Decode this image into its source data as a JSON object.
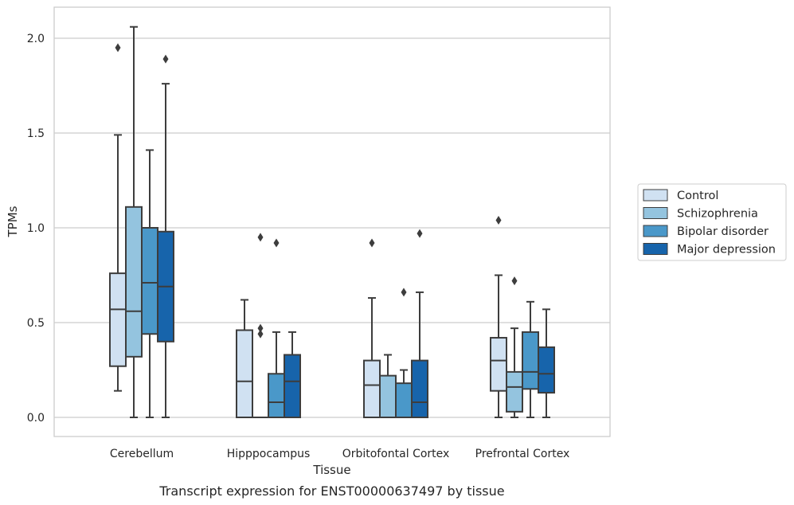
{
  "chart_data": {
    "type": "box",
    "title": "",
    "caption": "Transcript expression for ENST00000637497 by tissue",
    "xlabel": "Tissue",
    "ylabel": "TPMs",
    "ylim": [
      -0.1,
      2.17
    ],
    "yticks": [
      0.0,
      0.5,
      1.0,
      1.5,
      2.0
    ],
    "ytick_labels": [
      "0.0",
      "0.5",
      "1.0",
      "1.5",
      "2.0"
    ],
    "grid": "horizontal",
    "legend_position": "right",
    "categories": [
      "Cerebellum",
      "Hipppocampus",
      "Orbitofontal Cortex",
      "Prefrontal Cortex"
    ],
    "series": [
      {
        "name": "Control",
        "color": "#d0e1f2",
        "boxes": [
          {
            "whislo": 0.14,
            "q1": 0.27,
            "med": 0.57,
            "q3": 0.76,
            "whishi": 1.49,
            "fliers": [
              1.95
            ]
          },
          {
            "whislo": 0.0,
            "q1": 0.0,
            "med": 0.19,
            "q3": 0.46,
            "whishi": 0.62,
            "fliers": []
          },
          {
            "whislo": 0.0,
            "q1": 0.0,
            "med": 0.17,
            "q3": 0.3,
            "whishi": 0.63,
            "fliers": [
              0.92
            ]
          },
          {
            "whislo": 0.0,
            "q1": 0.14,
            "med": 0.3,
            "q3": 0.42,
            "whishi": 0.75,
            "fliers": [
              1.04
            ]
          }
        ]
      },
      {
        "name": "Schizophrenia",
        "color": "#94c4df",
        "boxes": [
          {
            "whislo": 0.0,
            "q1": 0.32,
            "med": 0.56,
            "q3": 1.11,
            "whishi": 2.06,
            "fliers": []
          },
          {
            "whislo": 0.0,
            "q1": 0.0,
            "med": 0.0,
            "q3": 0.0,
            "whishi": 0.0,
            "fliers": [
              0.95,
              0.47,
              0.44
            ]
          },
          {
            "whislo": 0.0,
            "q1": 0.0,
            "med": 0.0,
            "q3": 0.22,
            "whishi": 0.33,
            "fliers": []
          },
          {
            "whislo": 0.0,
            "q1": 0.03,
            "med": 0.16,
            "q3": 0.24,
            "whishi": 0.47,
            "fliers": [
              0.72
            ]
          }
        ]
      },
      {
        "name": "Bipolar disorder",
        "color": "#4a98c9",
        "boxes": [
          {
            "whislo": 0.0,
            "q1": 0.44,
            "med": 0.71,
            "q3": 1.0,
            "whishi": 1.41,
            "fliers": []
          },
          {
            "whislo": 0.0,
            "q1": 0.0,
            "med": 0.08,
            "q3": 0.23,
            "whishi": 0.45,
            "fliers": [
              0.92
            ]
          },
          {
            "whislo": 0.0,
            "q1": 0.0,
            "med": 0.0,
            "q3": 0.18,
            "whishi": 0.25,
            "fliers": [
              0.66
            ]
          },
          {
            "whislo": 0.0,
            "q1": 0.15,
            "med": 0.24,
            "q3": 0.45,
            "whishi": 0.61,
            "fliers": []
          }
        ]
      },
      {
        "name": "Major depression",
        "color": "#1764ab",
        "boxes": [
          {
            "whislo": 0.0,
            "q1": 0.4,
            "med": 0.69,
            "q3": 0.98,
            "whishi": 1.76,
            "fliers": [
              1.89
            ]
          },
          {
            "whislo": 0.0,
            "q1": 0.0,
            "med": 0.19,
            "q3": 0.33,
            "whishi": 0.45,
            "fliers": []
          },
          {
            "whislo": 0.0,
            "q1": 0.0,
            "med": 0.08,
            "q3": 0.3,
            "whishi": 0.66,
            "fliers": [
              0.97
            ]
          },
          {
            "whislo": 0.0,
            "q1": 0.13,
            "med": 0.23,
            "q3": 0.37,
            "whishi": 0.57,
            "fliers": []
          }
        ]
      }
    ],
    "style": {
      "line_color": "#3d3d3d",
      "grid_color": "#cccccc",
      "frame_color": "#cccccc",
      "background": "#ffffff"
    }
  }
}
